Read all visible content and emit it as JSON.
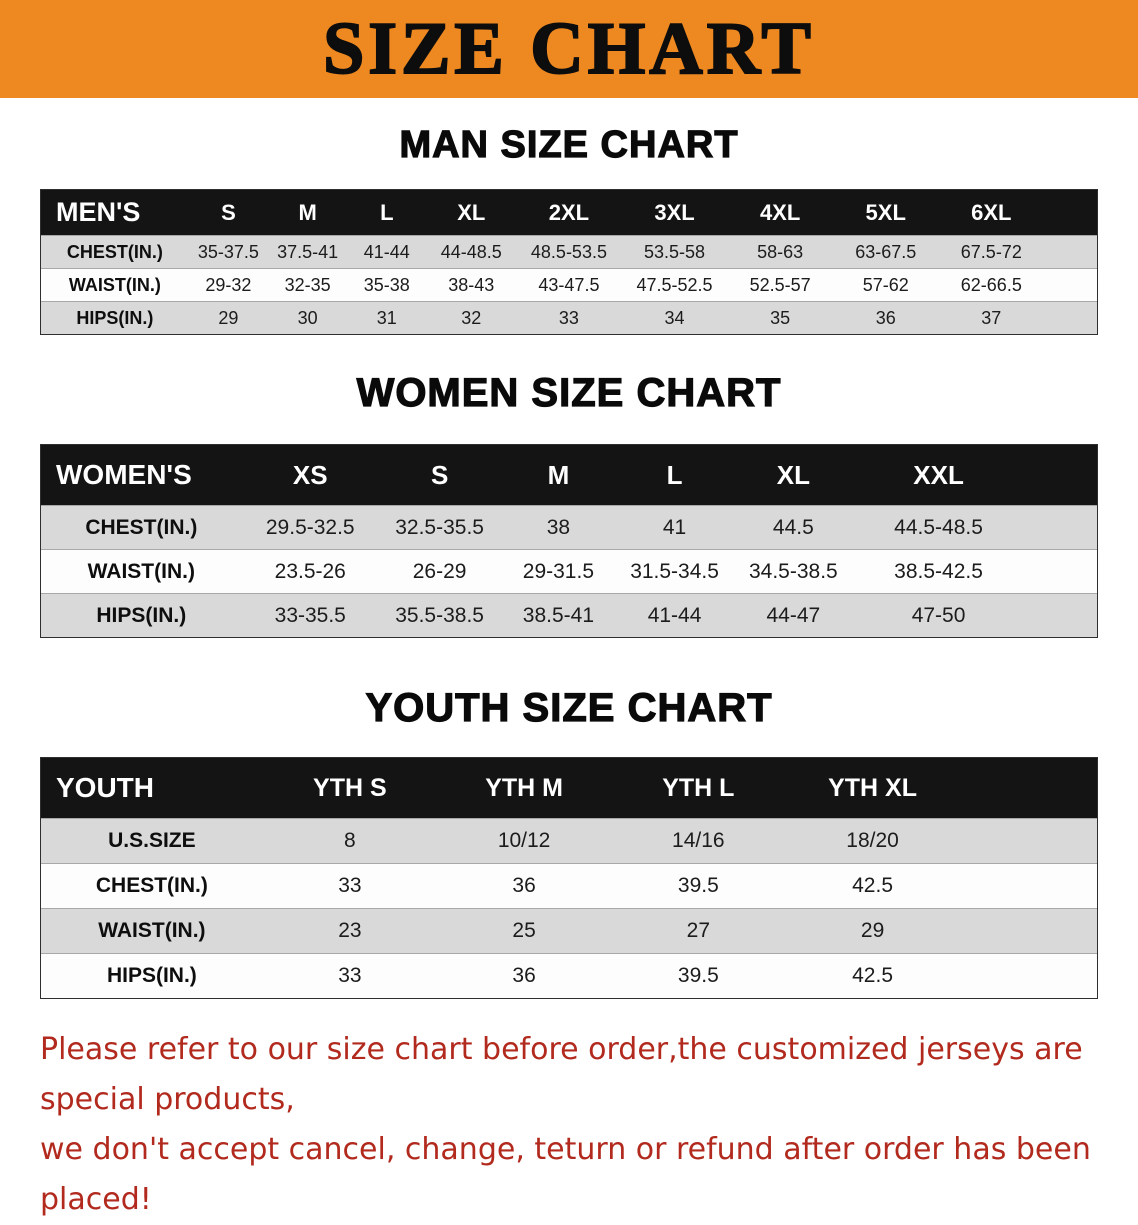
{
  "banner": {
    "title": "SIZE CHART"
  },
  "colors": {
    "banner_bg": "#ee8820",
    "table_header_bg": "#141414",
    "row_shade": "#d9d9d9",
    "notice_text": "#b22a1e"
  },
  "sections": [
    {
      "heading": "MAN SIZE CHART",
      "table": {
        "label": "MEN'S",
        "columns": [
          "S",
          "M",
          "L",
          "XL",
          "2XL",
          "3XL",
          "4XL",
          "5XL",
          "6XL"
        ],
        "rows": [
          {
            "label": "CHEST(IN.)",
            "values": [
              "35-37.5",
              "37.5-41",
              "41-44",
              "44-48.5",
              "48.5-53.5",
              "53.5-58",
              "58-63",
              "63-67.5",
              "67.5-72"
            ]
          },
          {
            "label": "WAIST(IN.)",
            "values": [
              "29-32",
              "32-35",
              "35-38",
              "38-43",
              "43-47.5",
              "47.5-52.5",
              "52.5-57",
              "57-62",
              "62-66.5"
            ]
          },
          {
            "label": "HIPS(IN.)",
            "values": [
              "29",
              "30",
              "31",
              "32",
              "33",
              "34",
              "35",
              "36",
              "37"
            ]
          }
        ]
      }
    },
    {
      "heading": "WOMEN SIZE CHART",
      "table": {
        "label": "WOMEN'S",
        "columns": [
          "XS",
          "S",
          "M",
          "L",
          "XL",
          "XXL"
        ],
        "rows": [
          {
            "label": "CHEST(IN.)",
            "values": [
              "29.5-32.5",
              "32.5-35.5",
              "38",
              "41",
              "44.5",
              "44.5-48.5"
            ]
          },
          {
            "label": "WAIST(IN.)",
            "values": [
              "23.5-26",
              "26-29",
              "29-31.5",
              "31.5-34.5",
              "34.5-38.5",
              "38.5-42.5"
            ]
          },
          {
            "label": "HIPS(IN.)",
            "values": [
              "33-35.5",
              "35.5-38.5",
              "38.5-41",
              "41-44",
              "44-47",
              "47-50"
            ]
          }
        ]
      }
    },
    {
      "heading": "YOUTH SIZE CHART",
      "table": {
        "label": "YOUTH",
        "columns": [
          "YTH S",
          "YTH M",
          "YTH L",
          "YTH XL"
        ],
        "rows": [
          {
            "label": "U.S.SIZE",
            "values": [
              "8",
              "10/12",
              "14/16",
              "18/20"
            ]
          },
          {
            "label": "CHEST(IN.)",
            "values": [
              "33",
              "36",
              "39.5",
              "42.5"
            ]
          },
          {
            "label": "WAIST(IN.)",
            "values": [
              "23",
              "25",
              "27",
              "29"
            ]
          },
          {
            "label": "HIPS(IN.)",
            "values": [
              "33",
              "36",
              "39.5",
              "42.5"
            ]
          }
        ]
      }
    }
  ],
  "footer": {
    "line1": "Please refer to our size chart before order,the customized jerseys are special products,",
    "line2": "we don't accept cancel, change, teturn or refund after order has been placed!"
  }
}
